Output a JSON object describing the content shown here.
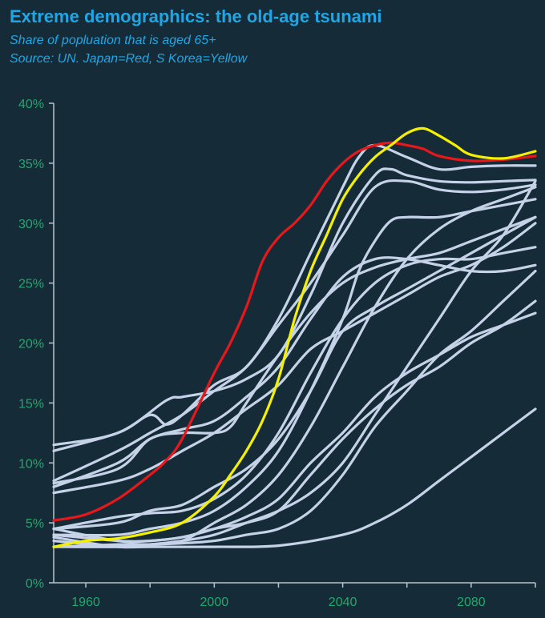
{
  "title": "Extreme demographics: the old-age tsunami",
  "subtitle": "Share of popluation that is aged 65+",
  "source": "Source: UN. Japan=Red, S Korea=Yellow",
  "colors": {
    "background": "#162b38",
    "title": "#1ea7e6",
    "ticks": "#1faa6a",
    "axis": "#b8c4cc",
    "japan": "#e8171a",
    "korea": "#f4f000",
    "others": "#c5d2e8"
  },
  "chart_data": {
    "type": "line",
    "xlim": [
      1950,
      2100
    ],
    "ylim": [
      0,
      40
    ],
    "xticks": [
      1960,
      2000,
      2040,
      2080
    ],
    "yticks": [
      0,
      5,
      10,
      15,
      20,
      25,
      30,
      35,
      40
    ],
    "yunit": "%",
    "series": [
      {
        "highlight": "japan",
        "x": [
          1950,
          1960,
          1970,
          1980,
          1985,
          1990,
          2000,
          2005,
          2010,
          2015,
          2020,
          2025,
          2030,
          2035,
          2040,
          2045,
          2050,
          2055,
          2060,
          2065,
          2070,
          2080,
          2090,
          2100
        ],
        "y": [
          5.2,
          5.7,
          7.0,
          9.0,
          10.2,
          12.0,
          17.5,
          20.0,
          23.0,
          26.8,
          28.8,
          30.0,
          31.5,
          33.5,
          35.0,
          36.0,
          36.5,
          36.7,
          36.5,
          36.2,
          35.6,
          35.2,
          35.3,
          35.6
        ]
      },
      {
        "highlight": "korea",
        "x": [
          1950,
          1960,
          1970,
          1980,
          1990,
          2000,
          2005,
          2010,
          2015,
          2020,
          2025,
          2030,
          2035,
          2040,
          2045,
          2050,
          2055,
          2060,
          2065,
          2070,
          2075,
          2080,
          2090,
          2100
        ],
        "y": [
          3.0,
          3.5,
          3.7,
          4.2,
          5.0,
          7.2,
          9.0,
          11.0,
          13.5,
          17.0,
          22.0,
          26.0,
          29.0,
          32.0,
          34.0,
          35.5,
          36.5,
          37.5,
          37.9,
          37.3,
          36.5,
          35.7,
          35.4,
          36.0
        ]
      },
      {
        "x": [
          1950,
          1970,
          1980,
          2000,
          2020,
          2040,
          2050,
          2060,
          2070,
          2080,
          2100
        ],
        "y": [
          3.5,
          3.0,
          3.0,
          3.0,
          3.1,
          4.0,
          5.0,
          6.5,
          8.5,
          10.5,
          14.5
        ]
      },
      {
        "x": [
          1950,
          1970,
          1980,
          1985,
          1990,
          2000,
          2010,
          2020,
          2030,
          2040,
          2045,
          2050,
          2060,
          2070,
          2080,
          2090,
          2100
        ],
        "y": [
          11.0,
          12.5,
          14.0,
          13.2,
          14.0,
          16.5,
          18.0,
          22.0,
          27.5,
          33.0,
          35.5,
          36.5,
          35.5,
          34.5,
          34.7,
          34.8,
          34.8
        ]
      },
      {
        "x": [
          1950,
          1970,
          1985,
          1990,
          2000,
          2010,
          2020,
          2030,
          2040,
          2050,
          2055,
          2060,
          2070,
          2080,
          2090,
          2100
        ],
        "y": [
          11.5,
          12.5,
          15.2,
          15.5,
          16.0,
          17.0,
          19.0,
          24.0,
          30.0,
          34.0,
          34.5,
          34.0,
          33.5,
          33.4,
          33.5,
          33.6
        ]
      },
      {
        "x": [
          1950,
          1970,
          1980,
          1990,
          2000,
          2010,
          2020,
          2030,
          2040,
          2050,
          2060,
          2070,
          2080,
          2090,
          2100
        ],
        "y": [
          8.5,
          11.0,
          12.5,
          14.0,
          16.0,
          18.0,
          21.5,
          25.0,
          29.0,
          33.0,
          33.5,
          32.8,
          32.6,
          32.8,
          33.2
        ]
      },
      {
        "x": [
          1950,
          1970,
          1980,
          1990,
          2000,
          2010,
          2020,
          2030,
          2040,
          2050,
          2060,
          2070,
          2080,
          2090,
          2100
        ],
        "y": [
          8.0,
          10.0,
          12.0,
          12.8,
          13.5,
          15.5,
          18.0,
          22.0,
          25.5,
          27.0,
          27.0,
          26.5,
          26.0,
          26.0,
          26.5
        ]
      },
      {
        "x": [
          1950,
          1970,
          1980,
          1990,
          2000,
          2005,
          2010,
          2020,
          2030,
          2040,
          2050,
          2060,
          2070,
          2080,
          2090,
          2100
        ],
        "y": [
          8.3,
          9.5,
          12.0,
          12.5,
          12.5,
          13.0,
          15.0,
          19.0,
          22.5,
          25.0,
          26.3,
          27.0,
          27.5,
          28.5,
          29.5,
          30.5
        ]
      },
      {
        "x": [
          1950,
          1970,
          1980,
          1990,
          2000,
          2010,
          2020,
          2030,
          2040,
          2050,
          2060,
          2070,
          2080,
          2090,
          2100
        ],
        "y": [
          7.5,
          8.5,
          9.5,
          11.0,
          12.5,
          14.5,
          16.5,
          19.5,
          21.0,
          22.5,
          24.0,
          25.5,
          26.5,
          28.0,
          30.0
        ]
      },
      {
        "x": [
          1950,
          1970,
          1980,
          1990,
          2000,
          2010,
          2020,
          2030,
          2040,
          2050,
          2060,
          2070,
          2080,
          2090,
          2100
        ],
        "y": [
          4.5,
          5.5,
          5.8,
          6.0,
          7.0,
          9.0,
          12.5,
          17.5,
          22.0,
          25.0,
          26.5,
          27.0,
          27.0,
          27.5,
          28.0
        ]
      },
      {
        "x": [
          1950,
          1970,
          1980,
          1990,
          2000,
          2010,
          2020,
          2030,
          2040,
          2050,
          2060,
          2070,
          2080,
          2090,
          2100
        ],
        "y": [
          4.5,
          5.0,
          6.0,
          6.5,
          8.0,
          9.5,
          12.0,
          16.0,
          21.0,
          23.0,
          24.5,
          26.0,
          27.5,
          29.0,
          30.5
        ]
      },
      {
        "x": [
          1950,
          1970,
          1980,
          1990,
          2000,
          2010,
          2020,
          2030,
          2040,
          2045,
          2050,
          2055,
          2060,
          2070,
          2080,
          2090,
          2100
        ],
        "y": [
          4.0,
          4.0,
          4.5,
          5.0,
          6.0,
          8.0,
          11.0,
          16.0,
          22.0,
          26.0,
          28.5,
          30.2,
          30.5,
          30.5,
          31.0,
          31.5,
          32.0
        ]
      },
      {
        "x": [
          1950,
          1970,
          1980,
          1990,
          2000,
          2010,
          2020,
          2030,
          2040,
          2050,
          2060,
          2070,
          2080,
          2090,
          2100
        ],
        "y": [
          3.8,
          3.0,
          3.2,
          3.5,
          5.0,
          6.5,
          9.0,
          13.0,
          18.0,
          23.0,
          27.0,
          29.5,
          31.0,
          32.0,
          33.0
        ]
      },
      {
        "x": [
          1950,
          1970,
          1980,
          1990,
          2000,
          2010,
          2020,
          2030,
          2040,
          2050,
          2060,
          2070,
          2080,
          2090,
          2100
        ],
        "y": [
          3.0,
          3.0,
          3.2,
          3.5,
          4.0,
          5.0,
          6.0,
          7.5,
          10.0,
          14.0,
          18.0,
          22.0,
          26.0,
          29.0,
          33.5
        ]
      },
      {
        "x": [
          1950,
          1970,
          1980,
          1990,
          2000,
          2010,
          2020,
          2030,
          2040,
          2050,
          2060,
          2070,
          2080,
          2090,
          2100
        ],
        "y": [
          4.0,
          3.5,
          3.5,
          3.8,
          4.5,
          5.0,
          6.0,
          9.0,
          12.0,
          14.5,
          16.5,
          18.0,
          20.0,
          21.5,
          23.5
        ]
      },
      {
        "x": [
          1950,
          1970,
          1980,
          1990,
          2000,
          2010,
          2020,
          2030,
          2040,
          2050,
          2060,
          2070,
          2080,
          2090,
          2100
        ],
        "y": [
          4.5,
          3.5,
          3.5,
          3.8,
          4.5,
          5.5,
          7.0,
          10.0,
          12.5,
          15.5,
          17.5,
          19.0,
          20.5,
          21.5,
          22.5
        ]
      },
      {
        "x": [
          1950,
          1970,
          1980,
          1990,
          2000,
          2010,
          2020,
          2030,
          2040,
          2050,
          2060,
          2070,
          2080,
          2090,
          2100
        ],
        "y": [
          3.0,
          3.2,
          3.2,
          3.3,
          3.5,
          4.0,
          4.5,
          6.0,
          9.0,
          13.0,
          16.0,
          19.0,
          21.0,
          23.5,
          26.0
        ]
      }
    ]
  }
}
